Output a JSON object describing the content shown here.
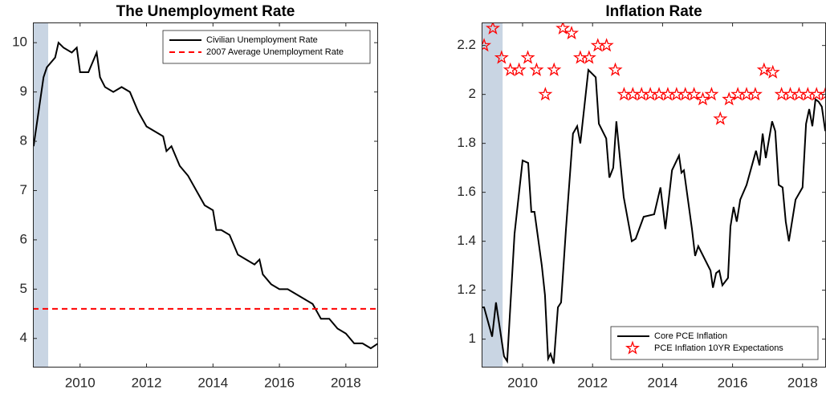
{
  "chart_data": [
    {
      "type": "line",
      "title": "The Unemployment Rate",
      "xlim": [
        2008.58,
        2018.97
      ],
      "ylim": [
        3.41,
        10.41
      ],
      "xticks": [
        2010,
        2012,
        2014,
        2016,
        2018
      ],
      "yticks": [
        4,
        5,
        6,
        7,
        8,
        9,
        10
      ],
      "shade": {
        "x": [
          2008.58,
          2009.04
        ],
        "color": "#c9d5e3"
      },
      "legend": "upper right",
      "series": [
        {
          "name": "Civilian Unemployment Rate",
          "color": "#000000",
          "x": [
            2008.6,
            2008.75,
            2008.9,
            2009.0,
            2009.25,
            2009.35,
            2009.5,
            2009.75,
            2009.9,
            2010.0,
            2010.25,
            2010.5,
            2010.6,
            2010.75,
            2011.0,
            2011.25,
            2011.5,
            2011.75,
            2012.0,
            2012.25,
            2012.5,
            2012.6,
            2012.75,
            2013.0,
            2013.25,
            2013.5,
            2013.75,
            2014.0,
            2014.1,
            2014.25,
            2014.5,
            2014.75,
            2015.0,
            2015.25,
            2015.4,
            2015.5,
            2015.75,
            2016.0,
            2016.25,
            2016.5,
            2016.75,
            2017.0,
            2017.25,
            2017.5,
            2017.75,
            2018.0,
            2018.25,
            2018.5,
            2018.75,
            2018.97
          ],
          "values": [
            7.9,
            8.6,
            9.3,
            9.5,
            9.7,
            10.0,
            9.9,
            9.8,
            9.9,
            9.4,
            9.4,
            9.8,
            9.3,
            9.1,
            9.0,
            9.1,
            9.0,
            8.6,
            8.3,
            8.2,
            8.1,
            7.8,
            7.9,
            7.5,
            7.3,
            7.0,
            6.7,
            6.6,
            6.2,
            6.2,
            6.1,
            5.7,
            5.6,
            5.5,
            5.6,
            5.3,
            5.1,
            5.0,
            5.0,
            4.9,
            4.8,
            4.7,
            4.4,
            4.4,
            4.2,
            4.1,
            3.9,
            3.9,
            3.8,
            3.9
          ]
        }
      ],
      "reference_lines": [
        {
          "name": "2007 Average Unemployment Rate",
          "color": "#ff0000",
          "value": 4.6,
          "dashed": true
        }
      ]
    },
    {
      "type": "line",
      "title": "Inflation Rate",
      "xlim": [
        2008.83,
        2018.67
      ],
      "ylim": [
        0.884,
        2.294
      ],
      "xticks": [
        2010,
        2012,
        2014,
        2016,
        2018
      ],
      "yticks": [
        1,
        1.2,
        1.4,
        1.6,
        1.8,
        2,
        2.2
      ],
      "shade": {
        "x": [
          2008.83,
          2009.43
        ],
        "color": "#c9d5e3"
      },
      "legend": "lower right",
      "series": [
        {
          "name": "Core PCE Inflation",
          "color": "#000000",
          "x": [
            2008.83,
            2008.9,
            2009.13,
            2009.24,
            2009.47,
            2009.56,
            2009.77,
            2010.0,
            2010.16,
            2010.25,
            2010.34,
            2010.55,
            2010.64,
            2010.73,
            2010.8,
            2010.89,
            2011.01,
            2011.1,
            2011.24,
            2011.44,
            2011.56,
            2011.65,
            2011.88,
            2012.09,
            2012.18,
            2012.39,
            2012.48,
            2012.59,
            2012.68,
            2012.89,
            2013.12,
            2013.23,
            2013.46,
            2013.76,
            2013.94,
            2014.08,
            2014.27,
            2014.47,
            2014.54,
            2014.61,
            2014.84,
            2014.93,
            2015.02,
            2015.37,
            2015.44,
            2015.53,
            2015.62,
            2015.71,
            2015.87,
            2015.94,
            2016.03,
            2016.12,
            2016.22,
            2016.4,
            2016.67,
            2016.77,
            2016.86,
            2016.95,
            2017.13,
            2017.22,
            2017.32,
            2017.43,
            2017.52,
            2017.61,
            2017.8,
            2018.0,
            2018.1,
            2018.19,
            2018.28,
            2018.37,
            2018.46,
            2018.55,
            2018.65
          ],
          "values": [
            1.13,
            1.13,
            1.01,
            1.15,
            0.93,
            0.91,
            1.43,
            1.73,
            1.72,
            1.52,
            1.52,
            1.3,
            1.18,
            0.92,
            0.94,
            0.9,
            1.13,
            1.15,
            1.45,
            1.84,
            1.87,
            1.8,
            2.1,
            2.07,
            1.88,
            1.82,
            1.66,
            1.7,
            1.89,
            1.58,
            1.4,
            1.41,
            1.5,
            1.51,
            1.62,
            1.45,
            1.69,
            1.75,
            1.68,
            1.69,
            1.45,
            1.34,
            1.38,
            1.28,
            1.21,
            1.27,
            1.28,
            1.22,
            1.25,
            1.46,
            1.54,
            1.48,
            1.57,
            1.63,
            1.77,
            1.71,
            1.84,
            1.74,
            1.89,
            1.85,
            1.63,
            1.62,
            1.48,
            1.4,
            1.57,
            1.62,
            1.88,
            1.94,
            1.87,
            1.98,
            1.97,
            1.95,
            1.85
          ]
        },
        {
          "name": "PCE Inflation 10YR Expectations",
          "color": "#ff0000",
          "marker": "star",
          "x": [
            2008.9,
            2009.15,
            2009.4,
            2009.65,
            2009.9,
            2010.15,
            2010.4,
            2010.65,
            2010.9,
            2011.15,
            2011.4,
            2011.65,
            2011.9,
            2012.15,
            2012.4,
            2012.65,
            2012.9,
            2013.15,
            2013.4,
            2013.65,
            2013.9,
            2014.15,
            2014.4,
            2014.65,
            2014.9,
            2015.15,
            2015.4,
            2015.65,
            2015.9,
            2016.15,
            2016.4,
            2016.65,
            2016.9,
            2017.15,
            2017.4,
            2017.65,
            2017.9,
            2018.15,
            2018.4,
            2018.65
          ],
          "values": [
            2.2,
            2.27,
            2.15,
            2.1,
            2.1,
            2.15,
            2.1,
            2.0,
            2.1,
            2.27,
            2.25,
            2.15,
            2.15,
            2.2,
            2.2,
            2.1,
            2.0,
            2.0,
            2.0,
            2.0,
            2.0,
            2.0,
            2.0,
            2.0,
            2.0,
            1.98,
            2.0,
            1.9,
            1.98,
            2.0,
            2.0,
            2.0,
            2.1,
            2.09,
            2.0,
            2.0,
            2.0,
            2.0,
            2.0,
            2.0
          ]
        }
      ]
    }
  ]
}
